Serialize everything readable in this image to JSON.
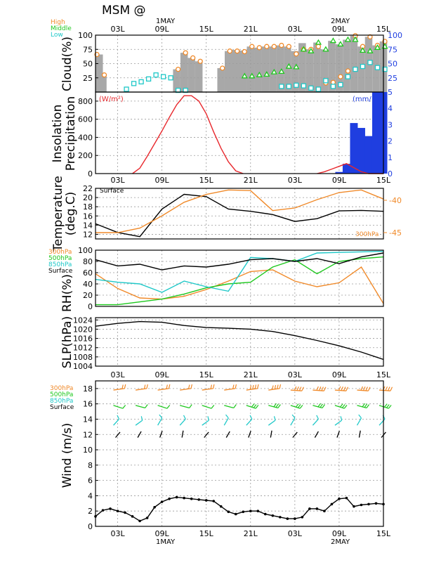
{
  "header": {
    "title": "MSM  @",
    "date_day1": "1MAY",
    "date_day2": "2MAY"
  },
  "time_ticks": [
    "03L",
    "09L",
    "15L",
    "21L",
    "03L",
    "09L",
    "15L"
  ],
  "colors": {
    "high": "#f08a2a",
    "middle": "#1ec81e",
    "low": "#1ec8c8",
    "surface": "#000000",
    "insolation": "#e8282d",
    "precip": "#1f3ee0",
    "cloud_fill": "#a8a8a8",
    "right_axis": "#1f3ee0"
  },
  "panels": {
    "cloud": {
      "ylabel": "Cloud(%)",
      "legend": [
        "High",
        "Middle",
        "Low"
      ],
      "yticks_left": [
        "25",
        "50",
        "75",
        "100"
      ],
      "yticks_right": [
        "25",
        "50",
        "75",
        "100"
      ]
    },
    "insolation": {
      "ylabel_1": "Insolation",
      "ylabel_2": "Precipitation",
      "unit_left": "(W/m²)",
      "unit_right": "(mm/",
      "yticks_left": [
        "0",
        "200",
        "400",
        "600",
        "800"
      ],
      "yticks_right": [
        "0",
        "1",
        "2",
        "3",
        "4",
        "5"
      ]
    },
    "temperature": {
      "ylabel_1": "Temperature",
      "ylabel_2": "(deg.C)",
      "series_label": "Surface",
      "upper_label": "300hPa",
      "yticks_left": [
        "12",
        "14",
        "16",
        "18",
        "20",
        "22"
      ],
      "yticks_right": [
        "-40",
        "-45"
      ]
    },
    "rh": {
      "ylabel": "RH(%)",
      "legend": [
        "300hPa",
        "500hPa",
        "850hPa",
        "Surface"
      ],
      "yticks": [
        "0",
        "20",
        "40",
        "60",
        "80",
        "100"
      ]
    },
    "slp": {
      "ylabel": "SLP(hPa)",
      "yticks": [
        "1004",
        "1008",
        "1012",
        "1016",
        "1020",
        "1024"
      ]
    },
    "wind": {
      "ylabel": "Wind  (m/s)",
      "legend": [
        "300hPa",
        "500hPa",
        "850hPa",
        "Surface"
      ],
      "yticks": [
        "0",
        "2",
        "4",
        "6",
        "8",
        "10",
        "12",
        "14",
        "16",
        "18"
      ]
    }
  },
  "chart_data": [
    {
      "type": "bar",
      "title": "",
      "ylabel": "Cloud(%)",
      "ylim": [
        0,
        100
      ],
      "x_hours": [
        0,
        1,
        2,
        3,
        4,
        5,
        6,
        7,
        8,
        9,
        10,
        11,
        12,
        13,
        14,
        15,
        16,
        17,
        18,
        19,
        20,
        21,
        22,
        23,
        24,
        25,
        26,
        27,
        28,
        29,
        30,
        31,
        32,
        33,
        34,
        35,
        36,
        37,
        38,
        39
      ],
      "series": [
        {
          "name": "Cloud total",
          "values": [
            66,
            30,
            0,
            0,
            0,
            0,
            0,
            0,
            0,
            0,
            0,
            40,
            69,
            60,
            54,
            0,
            0,
            42,
            72,
            74,
            73,
            80,
            78,
            80,
            80,
            82,
            80,
            72,
            86,
            75,
            87,
            75,
            90,
            84,
            92,
            99,
            80,
            97,
            82,
            89
          ]
        },
        {
          "name": "High",
          "values": [
            66,
            30,
            0,
            0,
            0,
            0,
            0,
            0,
            0,
            0,
            0,
            40,
            69,
            60,
            54,
            0,
            0,
            42,
            72,
            72,
            71,
            80,
            78,
            80,
            80,
            82,
            80,
            67,
            75,
            75,
            80,
            16,
            17,
            27,
            37,
            99,
            80,
            97,
            82,
            89
          ]
        },
        {
          "name": "Middle",
          "values": [
            null,
            null,
            null,
            null,
            null,
            null,
            null,
            null,
            null,
            null,
            null,
            null,
            null,
            null,
            null,
            null,
            null,
            null,
            null,
            null,
            28,
            28,
            30,
            31,
            35,
            36,
            45,
            44,
            75,
            72,
            87,
            75,
            90,
            84,
            92,
            92,
            73,
            72,
            78,
            80
          ]
        },
        {
          "name": "Low",
          "values": [
            null,
            null,
            null,
            null,
            5,
            15,
            18,
            23,
            30,
            27,
            25,
            3,
            3,
            null,
            null,
            null,
            null,
            null,
            null,
            null,
            null,
            null,
            null,
            null,
            null,
            10,
            10,
            12,
            11,
            7,
            5,
            20,
            10,
            13,
            27,
            40,
            45,
            52,
            43,
            40
          ]
        }
      ]
    },
    {
      "type": "line",
      "title": "",
      "ylabel": "Insolation",
      "ylim": [
        0,
        900
      ],
      "series": [
        {
          "name": "Insolation",
          "x": [
            5,
            6,
            7,
            8,
            9,
            10,
            11,
            12,
            13,
            14,
            15,
            16,
            17,
            18,
            19,
            20,
            30,
            31,
            32,
            33,
            34,
            35,
            36,
            37,
            38,
            39
          ],
          "values": [
            0,
            60,
            190,
            330,
            470,
            620,
            760,
            860,
            860,
            800,
            660,
            460,
            280,
            130,
            30,
            0,
            0,
            20,
            50,
            80,
            110,
            65,
            20,
            0,
            0,
            0
          ]
        }
      ]
    },
    {
      "type": "bar",
      "title": "",
      "ylabel": "Precipitation",
      "ylim": [
        0,
        5
      ],
      "categories": [
        33,
        34,
        35,
        36,
        37,
        38,
        39
      ],
      "values": [
        0.1,
        0.6,
        3.1,
        2.8,
        2.3,
        5.0,
        5.0
      ]
    },
    {
      "type": "line",
      "title": "",
      "ylabel": "(deg.C)",
      "ylim": [
        11,
        22
      ],
      "series": [
        {
          "name": "Surface",
          "x": [
            0,
            3,
            6,
            9,
            12,
            15,
            18,
            21,
            24,
            27,
            30,
            33,
            36,
            39
          ],
          "values": [
            14.3,
            12.4,
            11.5,
            17.5,
            20.7,
            20.2,
            17.5,
            17.0,
            16.3,
            14.8,
            15.4,
            17.1,
            17.2,
            17.0
          ]
        },
        {
          "name": "300hPa",
          "x": [
            0,
            3,
            6,
            9,
            12,
            15,
            18,
            21,
            24,
            27,
            30,
            33,
            36,
            39
          ],
          "values": [
            -45.0,
            -45.0,
            -44.3,
            -42.4,
            -40.3,
            -39.1,
            -38.4,
            -38.5,
            -41.6,
            -41.2,
            -39.9,
            -38.8,
            -38.4,
            -39.8
          ]
        }
      ]
    },
    {
      "type": "line",
      "title": "",
      "ylabel": "RH(%)",
      "ylim": [
        0,
        100
      ],
      "series": [
        {
          "name": "300hPa",
          "x": [
            0,
            3,
            6,
            9,
            12,
            15,
            18,
            21,
            24,
            27,
            30,
            33,
            36,
            39
          ],
          "values": [
            58,
            32,
            15,
            13,
            18,
            30,
            45,
            62,
            65,
            45,
            35,
            42,
            70,
            5
          ]
        },
        {
          "name": "500hPa",
          "x": [
            0,
            3,
            6,
            9,
            12,
            15,
            18,
            21,
            24,
            27,
            30,
            33,
            36,
            39
          ],
          "values": [
            3,
            3,
            8,
            13,
            22,
            33,
            40,
            43,
            70,
            83,
            58,
            80,
            85,
            88
          ]
        },
        {
          "name": "850hPa",
          "x": [
            0,
            3,
            6,
            9,
            12,
            15,
            18,
            21,
            24,
            27,
            30,
            33,
            36,
            39
          ],
          "values": [
            48,
            43,
            40,
            25,
            45,
            35,
            27,
            87,
            85,
            80,
            95,
            96,
            97,
            98
          ]
        },
        {
          "name": "Surface",
          "x": [
            0,
            3,
            6,
            9,
            12,
            15,
            18,
            21,
            24,
            27,
            30,
            33,
            36,
            39
          ],
          "values": [
            83,
            72,
            75,
            65,
            72,
            70,
            75,
            83,
            85,
            80,
            85,
            76,
            88,
            95
          ]
        }
      ]
    },
    {
      "type": "line",
      "title": "",
      "ylabel": "SLP(hPa)",
      "ylim": [
        1004,
        1025
      ],
      "series": [
        {
          "name": "SLP",
          "x": [
            0,
            3,
            6,
            9,
            12,
            15,
            18,
            21,
            24,
            27,
            30,
            33,
            36,
            39
          ],
          "values": [
            1021.3,
            1022.5,
            1023.3,
            1023.0,
            1021.6,
            1020.7,
            1020.4,
            1020.0,
            1019.0,
            1017.2,
            1015.1,
            1012.8,
            1010.1,
            1006.9
          ]
        }
      ]
    },
    {
      "type": "line",
      "title": "",
      "ylabel": "Wind  (m/s)",
      "ylim": [
        0,
        19
      ],
      "series": [
        {
          "name": "Surface",
          "x": [
            0,
            1,
            2,
            3,
            4,
            5,
            6,
            7,
            8,
            9,
            10,
            11,
            12,
            13,
            14,
            15,
            16,
            17,
            18,
            19,
            20,
            21,
            22,
            23,
            24,
            25,
            26,
            27,
            28,
            29,
            30,
            31,
            32,
            33,
            34,
            35,
            36,
            37,
            38,
            39
          ],
          "values": [
            1.3,
            2.1,
            2.3,
            2.0,
            1.8,
            1.3,
            0.7,
            1.1,
            2.5,
            3.2,
            3.6,
            3.8,
            3.7,
            3.6,
            3.5,
            3.4,
            3.3,
            2.6,
            1.9,
            1.6,
            1.9,
            2.0,
            2.0,
            1.6,
            1.4,
            1.2,
            1.0,
            1.0,
            1.2,
            2.3,
            2.3,
            2.0,
            2.9,
            3.6,
            3.7,
            2.6,
            2.8,
            2.9,
            3.0,
            2.9
          ]
        }
      ]
    }
  ]
}
